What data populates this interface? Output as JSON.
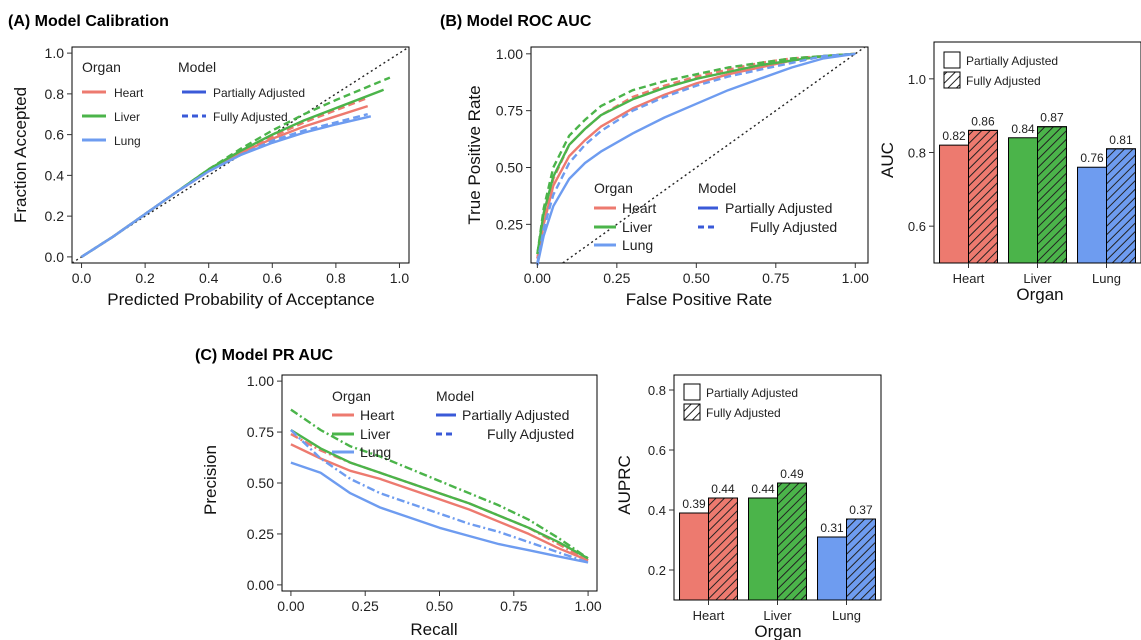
{
  "colors": {
    "heart": "#ed7a6f",
    "liver": "#4bb44a",
    "lung": "#6e9cf0"
  },
  "panels": {
    "a_title": "(A)  Model Calibration",
    "b_title": "(B)  Model ROC AUC",
    "c_title": "(C)  Model PR AUC"
  },
  "legend": {
    "organ_title": "Organ",
    "model_title": "Model",
    "heart": "Heart",
    "liver": "Liver",
    "lung": "Lung",
    "partial": "Partially Adjusted",
    "full": "Fully Adjusted"
  },
  "chart_data": [
    {
      "id": "calibration",
      "type": "line",
      "title": "(A)  Model Calibration",
      "xlabel": "Predicted Probability of Acceptance",
      "ylabel": "Fraction Accepted",
      "xlim": [
        -0.03,
        1.03
      ],
      "ylim": [
        -0.03,
        1.03
      ],
      "xticks": [
        "0.0",
        "0.2",
        "0.4",
        "0.6",
        "0.8",
        "1.0"
      ],
      "yticks": [
        "0.0",
        "0.2",
        "0.4",
        "0.6",
        "0.8",
        "1.0"
      ],
      "reference_line": "diagonal",
      "series": [
        {
          "organ": "Heart",
          "model": "Partially Adjusted",
          "x": [
            0,
            0.1,
            0.2,
            0.3,
            0.4,
            0.5,
            0.6,
            0.7,
            0.8,
            0.9
          ],
          "y": [
            0,
            0.1,
            0.21,
            0.32,
            0.42,
            0.51,
            0.58,
            0.64,
            0.69,
            0.74
          ]
        },
        {
          "organ": "Heart",
          "model": "Fully Adjusted",
          "x": [
            0,
            0.1,
            0.2,
            0.3,
            0.4,
            0.5,
            0.6,
            0.7,
            0.8,
            0.9
          ],
          "y": [
            0,
            0.1,
            0.21,
            0.32,
            0.42,
            0.51,
            0.59,
            0.66,
            0.72,
            0.78
          ]
        },
        {
          "organ": "Liver",
          "model": "Partially Adjusted",
          "x": [
            0,
            0.1,
            0.2,
            0.3,
            0.4,
            0.5,
            0.6,
            0.7,
            0.8,
            0.95
          ],
          "y": [
            0,
            0.1,
            0.21,
            0.32,
            0.43,
            0.52,
            0.6,
            0.67,
            0.73,
            0.82
          ]
        },
        {
          "organ": "Liver",
          "model": "Fully Adjusted",
          "x": [
            0,
            0.1,
            0.2,
            0.3,
            0.4,
            0.5,
            0.6,
            0.7,
            0.8,
            0.97
          ],
          "y": [
            0,
            0.1,
            0.21,
            0.32,
            0.43,
            0.53,
            0.62,
            0.7,
            0.77,
            0.88
          ]
        },
        {
          "organ": "Lung",
          "model": "Partially Adjusted",
          "x": [
            0,
            0.1,
            0.2,
            0.3,
            0.4,
            0.5,
            0.6,
            0.7,
            0.8,
            0.91
          ],
          "y": [
            0,
            0.1,
            0.21,
            0.32,
            0.42,
            0.5,
            0.56,
            0.61,
            0.65,
            0.69
          ]
        },
        {
          "organ": "Lung",
          "model": "Fully Adjusted",
          "x": [
            0,
            0.1,
            0.2,
            0.3,
            0.4,
            0.5,
            0.6,
            0.7,
            0.8,
            0.9
          ],
          "y": [
            0,
            0.1,
            0.21,
            0.32,
            0.42,
            0.5,
            0.57,
            0.62,
            0.66,
            0.7
          ]
        }
      ]
    },
    {
      "id": "roc",
      "type": "line",
      "title": "(B)  Model ROC AUC",
      "xlabel": "False Positive Rate",
      "ylabel": "True Positive Rate",
      "xlim": [
        -0.02,
        1.04
      ],
      "ylim": [
        0.08,
        1.03
      ],
      "xticks": [
        "0.00",
        "0.25",
        "0.50",
        "0.75",
        "1.00"
      ],
      "yticks": [
        "0.25",
        "0.50",
        "0.75",
        "1.00"
      ],
      "reference_line": "diagonal",
      "series": [
        {
          "organ": "Heart",
          "model": "Partially Adjusted",
          "x": [
            0,
            0.02,
            0.05,
            0.1,
            0.15,
            0.2,
            0.3,
            0.4,
            0.5,
            0.6,
            0.7,
            0.8,
            0.9,
            1.0
          ],
          "y": [
            0.1,
            0.25,
            0.42,
            0.55,
            0.62,
            0.68,
            0.76,
            0.82,
            0.87,
            0.91,
            0.94,
            0.97,
            0.99,
            1.0
          ]
        },
        {
          "organ": "Heart",
          "model": "Fully Adjusted",
          "x": [
            0,
            0.02,
            0.05,
            0.1,
            0.15,
            0.2,
            0.3,
            0.4,
            0.5,
            0.6,
            0.7,
            0.8,
            0.9,
            1.0
          ],
          "y": [
            0.1,
            0.28,
            0.45,
            0.6,
            0.67,
            0.73,
            0.81,
            0.86,
            0.9,
            0.93,
            0.96,
            0.98,
            0.99,
            1.0
          ]
        },
        {
          "organ": "Liver",
          "model": "Partially Adjusted",
          "x": [
            0,
            0.02,
            0.05,
            0.1,
            0.15,
            0.2,
            0.3,
            0.4,
            0.5,
            0.6,
            0.7,
            0.8,
            0.9,
            1.0
          ],
          "y": [
            0.12,
            0.3,
            0.46,
            0.6,
            0.67,
            0.73,
            0.8,
            0.85,
            0.89,
            0.92,
            0.95,
            0.97,
            0.99,
            1.0
          ]
        },
        {
          "organ": "Liver",
          "model": "Fully Adjusted",
          "x": [
            0,
            0.02,
            0.05,
            0.1,
            0.15,
            0.2,
            0.3,
            0.4,
            0.5,
            0.6,
            0.7,
            0.8,
            0.9,
            1.0
          ],
          "y": [
            0.12,
            0.32,
            0.5,
            0.64,
            0.71,
            0.77,
            0.84,
            0.88,
            0.91,
            0.94,
            0.96,
            0.98,
            0.99,
            1.0
          ]
        },
        {
          "organ": "Lung",
          "model": "Partially Adjusted",
          "x": [
            0,
            0.02,
            0.05,
            0.1,
            0.15,
            0.2,
            0.3,
            0.4,
            0.5,
            0.6,
            0.7,
            0.8,
            0.9,
            1.0
          ],
          "y": [
            0.07,
            0.2,
            0.33,
            0.45,
            0.52,
            0.57,
            0.65,
            0.72,
            0.78,
            0.84,
            0.89,
            0.94,
            0.98,
            1.0
          ]
        },
        {
          "organ": "Lung",
          "model": "Fully Adjusted",
          "x": [
            0,
            0.02,
            0.05,
            0.1,
            0.15,
            0.2,
            0.3,
            0.4,
            0.5,
            0.6,
            0.7,
            0.8,
            0.9,
            1.0
          ],
          "y": [
            0.08,
            0.23,
            0.38,
            0.52,
            0.6,
            0.66,
            0.75,
            0.81,
            0.86,
            0.9,
            0.93,
            0.96,
            0.99,
            1.0
          ]
        }
      ]
    },
    {
      "id": "roc_auc",
      "type": "bar",
      "xlabel": "Organ",
      "ylabel": "AUC",
      "ylim": [
        0.5,
        1.1
      ],
      "yticks": [
        "0.6",
        "0.8",
        "1.0"
      ],
      "categories": [
        "Heart",
        "Liver",
        "Lung"
      ],
      "series": [
        {
          "name": "Partially Adjusted",
          "values": [
            0.82,
            0.84,
            0.76
          ],
          "labels": [
            "0.82",
            "0.84",
            "0.76"
          ]
        },
        {
          "name": "Fully Adjusted",
          "values": [
            0.86,
            0.87,
            0.81
          ],
          "labels": [
            "0.86",
            "0.87",
            "0.81"
          ]
        }
      ]
    },
    {
      "id": "pr",
      "type": "line",
      "title": "(C)  Model PR AUC",
      "xlabel": "Recall",
      "ylabel": "Precision",
      "xlim": [
        -0.03,
        1.03
      ],
      "ylim": [
        -0.03,
        1.03
      ],
      "xticks": [
        "0.00",
        "0.25",
        "0.50",
        "0.75",
        "1.00"
      ],
      "yticks": [
        "0.00",
        "0.25",
        "0.50",
        "0.75",
        "1.00"
      ],
      "series": [
        {
          "organ": "Heart",
          "model": "Partially Adjusted",
          "x": [
            0,
            0.1,
            0.2,
            0.3,
            0.4,
            0.5,
            0.6,
            0.7,
            0.8,
            0.9,
            1.0
          ],
          "y": [
            0.69,
            0.62,
            0.56,
            0.52,
            0.47,
            0.42,
            0.37,
            0.31,
            0.25,
            0.18,
            0.12
          ]
        },
        {
          "organ": "Heart",
          "model": "Fully Adjusted",
          "x": [
            0,
            0.1,
            0.2,
            0.3,
            0.4,
            0.5,
            0.6,
            0.7,
            0.8,
            0.9,
            1.0
          ],
          "y": [
            0.74,
            0.66,
            0.6,
            0.55,
            0.5,
            0.45,
            0.4,
            0.34,
            0.28,
            0.2,
            0.12
          ]
        },
        {
          "organ": "Liver",
          "model": "Partially Adjusted",
          "x": [
            0,
            0.1,
            0.2,
            0.3,
            0.4,
            0.5,
            0.6,
            0.7,
            0.8,
            0.9,
            1.0
          ],
          "y": [
            0.76,
            0.67,
            0.6,
            0.55,
            0.5,
            0.45,
            0.4,
            0.34,
            0.28,
            0.21,
            0.13
          ]
        },
        {
          "organ": "Liver",
          "model": "Fully Adjusted",
          "x": [
            0,
            0.1,
            0.2,
            0.3,
            0.4,
            0.5,
            0.6,
            0.7,
            0.8,
            0.9,
            1.0
          ],
          "y": [
            0.86,
            0.76,
            0.68,
            0.63,
            0.57,
            0.51,
            0.45,
            0.39,
            0.32,
            0.23,
            0.13
          ]
        },
        {
          "organ": "Lung",
          "model": "Partially Adjusted",
          "x": [
            0,
            0.1,
            0.2,
            0.3,
            0.4,
            0.5,
            0.6,
            0.7,
            0.8,
            0.9,
            1.0
          ],
          "y": [
            0.6,
            0.55,
            0.45,
            0.38,
            0.33,
            0.28,
            0.24,
            0.2,
            0.17,
            0.14,
            0.11
          ]
        },
        {
          "organ": "Lung",
          "model": "Fully Adjusted",
          "x": [
            0,
            0.1,
            0.2,
            0.3,
            0.4,
            0.5,
            0.6,
            0.7,
            0.8,
            0.9,
            1.0
          ],
          "y": [
            0.76,
            0.62,
            0.52,
            0.45,
            0.4,
            0.35,
            0.3,
            0.26,
            0.21,
            0.16,
            0.11
          ]
        }
      ]
    },
    {
      "id": "pr_auc",
      "type": "bar",
      "xlabel": "Organ",
      "ylabel": "AUPRC",
      "ylim": [
        0.1,
        0.85
      ],
      "yticks": [
        "0.2",
        "0.4",
        "0.6",
        "0.8"
      ],
      "categories": [
        "Heart",
        "Liver",
        "Lung"
      ],
      "series": [
        {
          "name": "Partially Adjusted",
          "values": [
            0.39,
            0.44,
            0.31
          ],
          "labels": [
            "0.39",
            "0.44",
            "0.31"
          ]
        },
        {
          "name": "Fully Adjusted",
          "values": [
            0.44,
            0.49,
            0.37
          ],
          "labels": [
            "0.44",
            "0.49",
            "0.37"
          ]
        }
      ]
    }
  ]
}
